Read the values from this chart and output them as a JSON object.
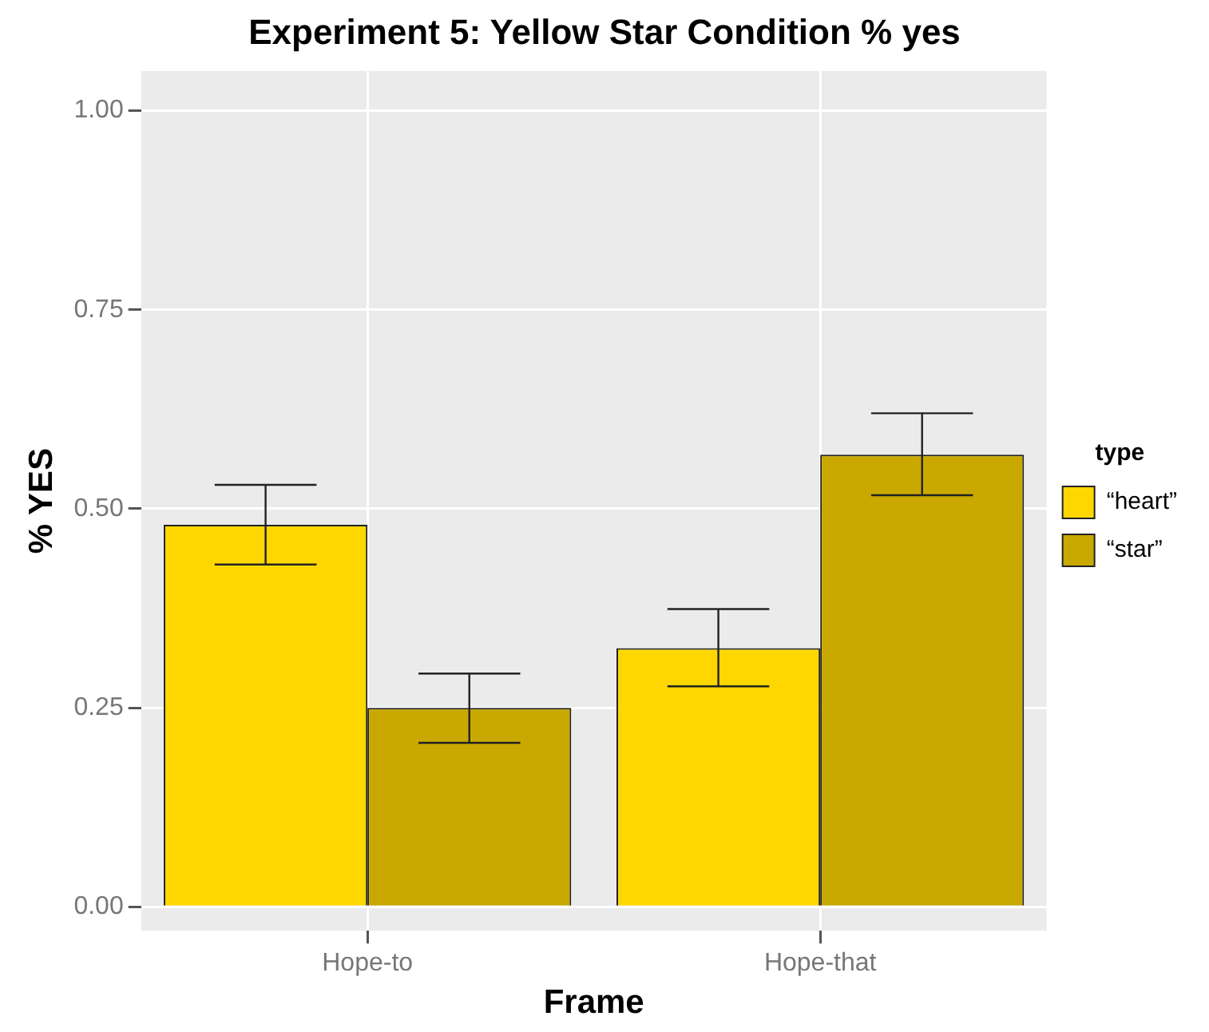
{
  "chart_data": {
    "type": "bar",
    "title": "Experiment 5: Yellow Star Condition % yes",
    "xlabel": "Frame",
    "ylabel": "% YES",
    "legend_title": "type",
    "categories": [
      "Hope-to",
      "Hope-that"
    ],
    "series": [
      {
        "name": "“heart”",
        "color": "#ffd700",
        "values": [
          0.48,
          0.325
        ],
        "errors": [
          [
            0.43,
            0.53
          ],
          [
            0.277,
            0.374
          ]
        ]
      },
      {
        "name": "“star”",
        "color": "#c9a900",
        "values": [
          0.25,
          0.568
        ],
        "errors": [
          [
            0.206,
            0.293
          ],
          [
            0.517,
            0.62
          ]
        ]
      }
    ],
    "ylim": [
      -0.03,
      1.05
    ],
    "yticks": [
      {
        "value": 0,
        "label": "0.00"
      },
      {
        "value": 0.25,
        "label": "0.25"
      },
      {
        "value": 0.5,
        "label": "0.50"
      },
      {
        "value": 0.75,
        "label": "0.75"
      },
      {
        "value": 1,
        "label": "1.00"
      }
    ],
    "grid": true,
    "legend": "right"
  }
}
